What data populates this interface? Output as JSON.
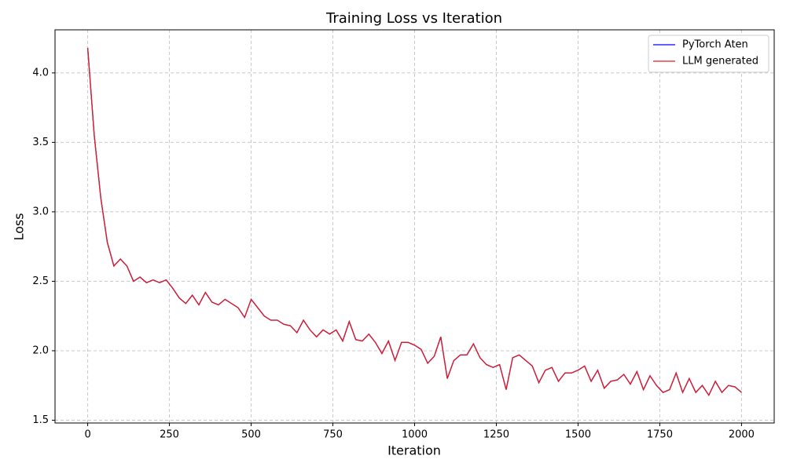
{
  "chart_data": {
    "type": "line",
    "title": "Training Loss vs Iteration",
    "x_label": "Iteration",
    "y_label": "Loss",
    "x": [
      0,
      20,
      40,
      60,
      80,
      100,
      120,
      140,
      160,
      180,
      200,
      220,
      240,
      260,
      280,
      300,
      320,
      340,
      360,
      380,
      400,
      420,
      440,
      460,
      480,
      500,
      520,
      540,
      560,
      580,
      600,
      620,
      640,
      660,
      680,
      700,
      720,
      740,
      760,
      780,
      800,
      820,
      840,
      860,
      880,
      900,
      920,
      940,
      960,
      980,
      1000,
      1020,
      1040,
      1060,
      1080,
      1100,
      1120,
      1140,
      1160,
      1180,
      1200,
      1220,
      1240,
      1260,
      1280,
      1300,
      1320,
      1340,
      1360,
      1380,
      1400,
      1420,
      1440,
      1460,
      1480,
      1500,
      1520,
      1540,
      1560,
      1580,
      1600,
      1620,
      1640,
      1660,
      1680,
      1700,
      1720,
      1740,
      1760,
      1780,
      1800,
      1820,
      1840,
      1860,
      1880,
      1900,
      1920,
      1940,
      1960,
      1980,
      2000
    ],
    "series": [
      {
        "name": "PyTorch Aten",
        "color": "#0000ff",
        "values": [
          4.18,
          3.55,
          3.1,
          2.78,
          2.61,
          2.66,
          2.61,
          2.5,
          2.53,
          2.49,
          2.51,
          2.49,
          2.51,
          2.45,
          2.38,
          2.34,
          2.4,
          2.33,
          2.42,
          2.35,
          2.33,
          2.37,
          2.34,
          2.31,
          2.24,
          2.37,
          2.31,
          2.25,
          2.22,
          2.22,
          2.19,
          2.18,
          2.13,
          2.22,
          2.15,
          2.1,
          2.15,
          2.12,
          2.15,
          2.07,
          2.21,
          2.08,
          2.07,
          2.12,
          2.06,
          1.98,
          2.07,
          1.93,
          2.06,
          2.06,
          2.04,
          2.01,
          1.91,
          1.96,
          2.1,
          1.8,
          1.93,
          1.97,
          1.97,
          2.05,
          1.95,
          1.9,
          1.88,
          1.9,
          1.72,
          1.95,
          1.97,
          1.93,
          1.89,
          1.77,
          1.86,
          1.88,
          1.78,
          1.84,
          1.84,
          1.86,
          1.89,
          1.78,
          1.86,
          1.73,
          1.78,
          1.79,
          1.83,
          1.76,
          1.85,
          1.72,
          1.82,
          1.75,
          1.7,
          1.72,
          1.84,
          1.7,
          1.8,
          1.7,
          1.75,
          1.68,
          1.78,
          1.7,
          1.75,
          1.74,
          1.7
        ]
      },
      {
        "name": "LLM generated",
        "color": "#e41a1c",
        "values": [
          4.18,
          3.55,
          3.1,
          2.78,
          2.61,
          2.66,
          2.61,
          2.5,
          2.53,
          2.49,
          2.51,
          2.49,
          2.51,
          2.45,
          2.38,
          2.34,
          2.4,
          2.33,
          2.42,
          2.35,
          2.33,
          2.37,
          2.34,
          2.31,
          2.24,
          2.37,
          2.31,
          2.25,
          2.22,
          2.22,
          2.19,
          2.18,
          2.13,
          2.22,
          2.15,
          2.1,
          2.15,
          2.12,
          2.15,
          2.07,
          2.21,
          2.08,
          2.07,
          2.12,
          2.06,
          1.98,
          2.07,
          1.93,
          2.06,
          2.06,
          2.04,
          2.01,
          1.91,
          1.96,
          2.1,
          1.8,
          1.93,
          1.97,
          1.97,
          2.05,
          1.95,
          1.9,
          1.88,
          1.9,
          1.72,
          1.95,
          1.97,
          1.93,
          1.89,
          1.77,
          1.86,
          1.88,
          1.78,
          1.84,
          1.84,
          1.86,
          1.89,
          1.78,
          1.86,
          1.73,
          1.78,
          1.79,
          1.83,
          1.76,
          1.85,
          1.72,
          1.82,
          1.75,
          1.7,
          1.72,
          1.84,
          1.7,
          1.8,
          1.7,
          1.75,
          1.68,
          1.78,
          1.7,
          1.75,
          1.74,
          1.7
        ]
      }
    ],
    "xlim": [
      -100,
      2100
    ],
    "xticks": [
      0,
      250,
      500,
      750,
      1000,
      1250,
      1500,
      1750,
      2000
    ],
    "ylim": [
      1.48,
      4.31
    ],
    "yticks": [
      1.5,
      {
        "value": 2,
        "label": "2.0"
      },
      2.5,
      {
        "value": 3,
        "label": "3.0"
      },
      3.5,
      {
        "value": 4,
        "label": "4.0"
      }
    ],
    "grid": true,
    "legend": "upper right"
  }
}
